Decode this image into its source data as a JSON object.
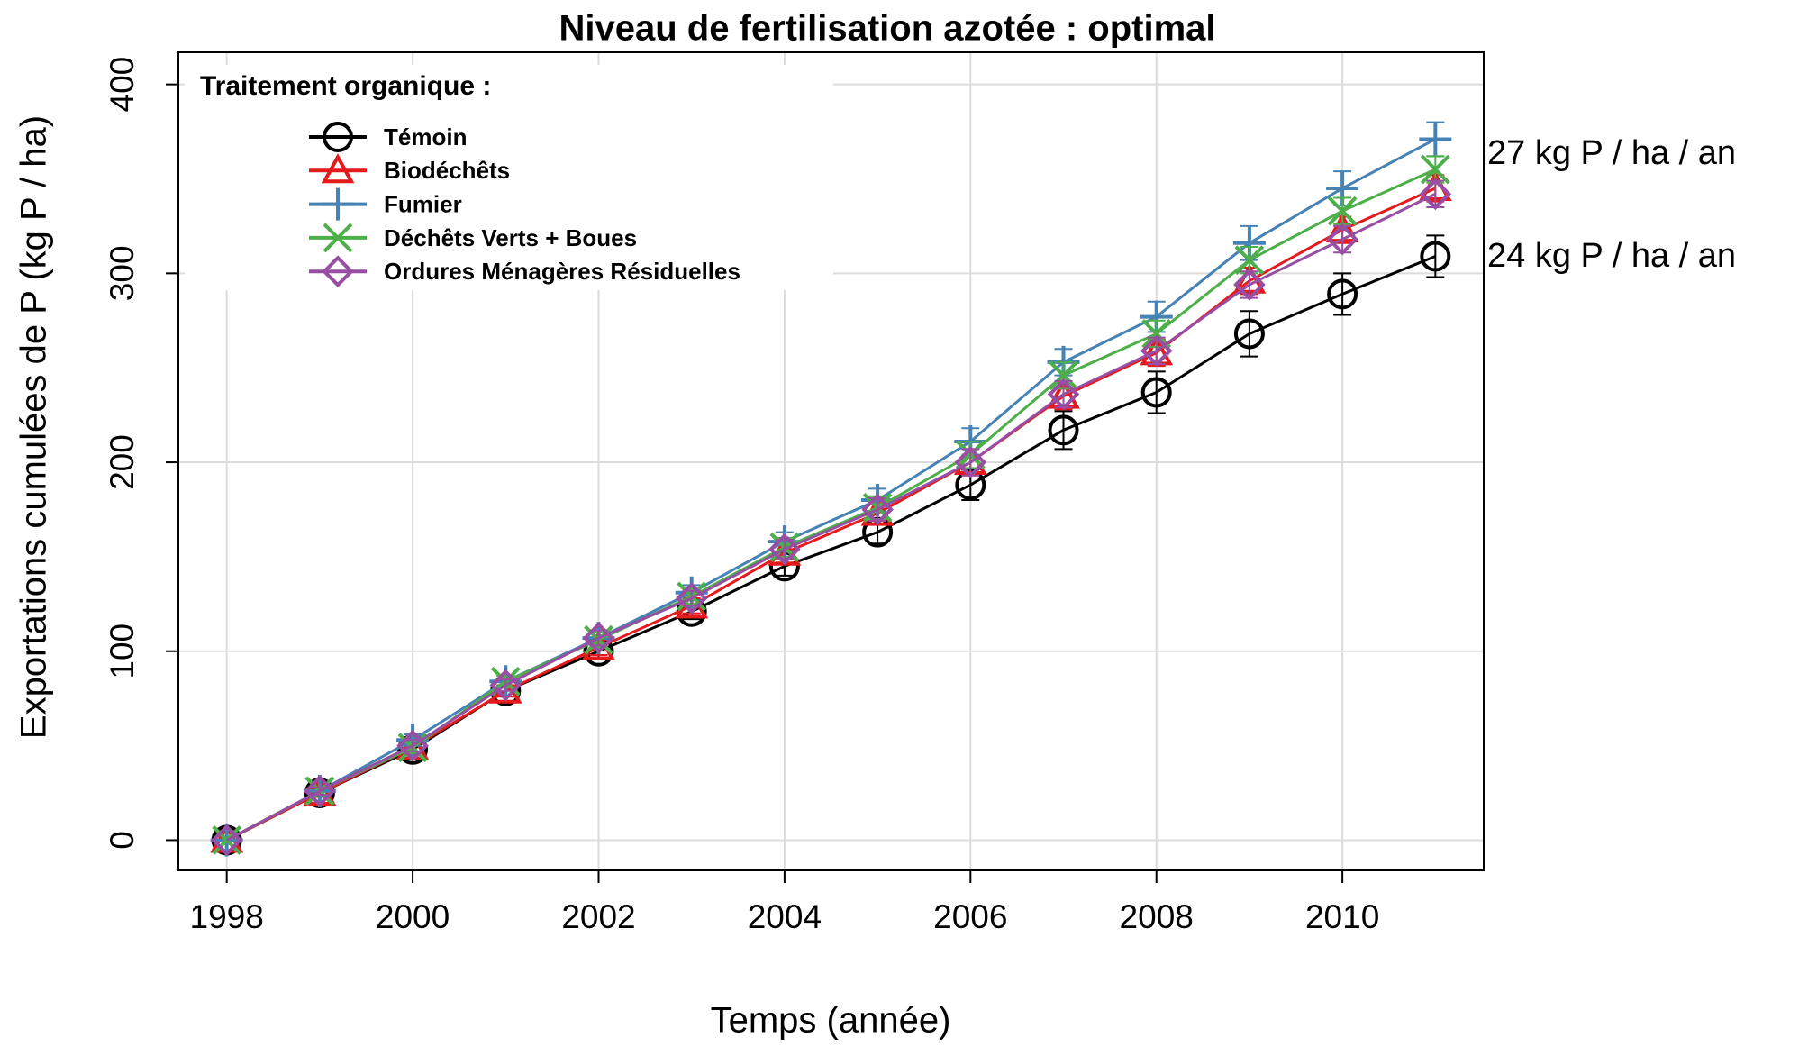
{
  "chart_data": {
    "type": "line",
    "title": "Niveau de fertilisation azotée : optimal",
    "x_label": "Temps (année)",
    "y_label": "Exportations cumulées de P (kg P / ha)",
    "legend_title": "Traitement organique :",
    "legend_position": "upper left",
    "grid": true,
    "annotations": [
      "27 kg P / ha / an",
      "24 kg P / ha / an"
    ],
    "x": [
      1998,
      1999,
      2000,
      2001,
      2002,
      2003,
      2004,
      2005,
      2006,
      2007,
      2008,
      2009,
      2010,
      2011
    ],
    "xlim": [
      1997.48,
      2011.52
    ],
    "xticks": [
      1998,
      2000,
      2002,
      2004,
      2006,
      2008,
      2010
    ],
    "ylim": [
      -16,
      417
    ],
    "yticks": [
      0,
      100,
      200,
      300,
      400
    ],
    "series": [
      {
        "name": "Témoin",
        "color": "#000000",
        "marker": "circle",
        "values": [
          0,
          25,
          48,
          79,
          100,
          121,
          145,
          163,
          188,
          217,
          237,
          268,
          289,
          309
        ],
        "errors": [
          0,
          2,
          3,
          3,
          4,
          4,
          5,
          6,
          8,
          10,
          11,
          12,
          11,
          11
        ]
      },
      {
        "name": "Biodéchêts",
        "color": "#e41a1c",
        "marker": "triangle",
        "values": [
          0,
          25,
          49,
          79,
          102,
          124,
          152,
          173,
          200,
          235,
          258,
          296,
          323,
          345
        ],
        "errors": [
          0,
          2,
          3,
          3,
          4,
          4,
          5,
          6,
          7,
          7,
          7,
          7,
          7,
          7
        ]
      },
      {
        "name": "Fumier",
        "color": "#4682b4",
        "marker": "plus",
        "values": [
          0,
          26,
          53,
          84,
          107,
          131,
          158,
          180,
          211,
          253,
          277,
          316,
          345,
          371
        ],
        "errors": [
          0,
          2,
          3,
          3,
          4,
          4,
          5,
          6,
          7,
          7,
          8,
          9,
          9,
          9
        ]
      },
      {
        "name": "Déchêts Verts + Boues",
        "color": "#4daf4a",
        "marker": "x",
        "values": [
          0,
          26,
          49,
          84,
          106,
          129,
          155,
          176,
          204,
          246,
          268,
          307,
          333,
          355
        ],
        "errors": [
          0,
          2,
          3,
          3,
          4,
          4,
          5,
          6,
          7,
          7,
          7,
          7,
          7,
          7
        ]
      },
      {
        "name": "Ordures Ménagères Résiduelles",
        "color": "#984ea3",
        "marker": "diamond",
        "values": [
          0,
          26,
          50,
          82,
          107,
          128,
          154,
          175,
          200,
          236,
          259,
          294,
          318,
          342
        ],
        "errors": [
          0,
          2,
          3,
          3,
          4,
          4,
          5,
          6,
          7,
          7,
          7,
          7,
          7,
          7
        ]
      }
    ]
  }
}
